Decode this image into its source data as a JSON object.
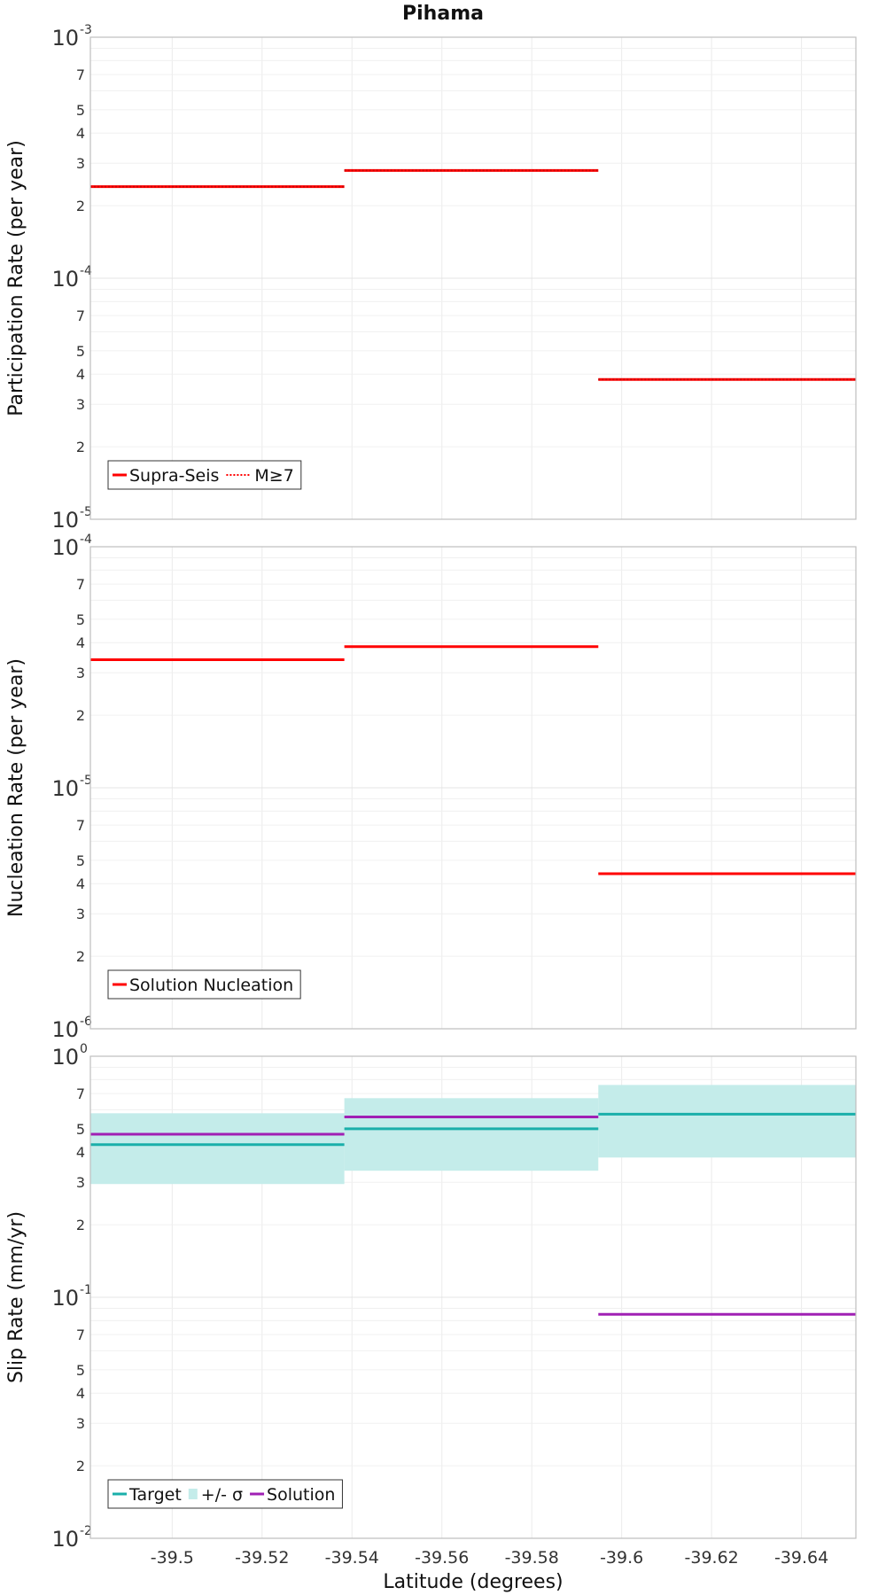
{
  "chart_data": {
    "title": "Pihama",
    "xlabel": "Latitude (degrees)",
    "xlim": [
      -39.4818,
      -39.6521
    ],
    "xticks": [
      -39.5,
      -39.52,
      -39.54,
      -39.56,
      -39.58,
      -39.6,
      -39.62,
      -39.64
    ],
    "xtick_labels": [
      "-39.5",
      "-39.52",
      "-39.54",
      "-39.56",
      "-39.58",
      "-39.6",
      "-39.62",
      "-39.64"
    ],
    "subplots": [
      {
        "type": "line",
        "ylabel": "Participation Rate (per year)",
        "yscale": "log",
        "ylim": [
          1e-05,
          0.001
        ],
        "decade_labels": [
          {
            "base": "10",
            "exp": "-5"
          },
          {
            "base": "10",
            "exp": "-4"
          },
          {
            "base": "10",
            "exp": "-3"
          }
        ],
        "minor_tick_labels": [
          "2",
          "3",
          "4",
          "5",
          "7"
        ],
        "legend": [
          "Supra-Seis",
          "M≥7"
        ],
        "series": [
          {
            "name": "Supra-Seis",
            "color": "#ff0000",
            "style": "solid",
            "segments": [
              {
                "x0": -39.4818,
                "x1": -39.5383,
                "y": 0.00024
              },
              {
                "x0": -39.5383,
                "x1": -39.5948,
                "y": 0.00028
              },
              {
                "x0": -39.5948,
                "x1": -39.6521,
                "y": 3.8e-05
              }
            ]
          },
          {
            "name": "M≥7",
            "color": "#ff0000",
            "style": "dotted",
            "segments": [
              {
                "x0": -39.4818,
                "x1": -39.5383,
                "y": 0.00024
              },
              {
                "x0": -39.5383,
                "x1": -39.5948,
                "y": 0.00028
              },
              {
                "x0": -39.5948,
                "x1": -39.6521,
                "y": 3.8e-05
              }
            ]
          }
        ]
      },
      {
        "type": "line",
        "ylabel": "Nucleation Rate (per year)",
        "yscale": "log",
        "ylim": [
          1e-06,
          0.0001
        ],
        "decade_labels": [
          {
            "base": "10",
            "exp": "-6"
          },
          {
            "base": "10",
            "exp": "-5"
          },
          {
            "base": "10",
            "exp": "-4"
          }
        ],
        "minor_tick_labels": [
          "2",
          "3",
          "4",
          "5",
          "7"
        ],
        "legend": [
          "Solution Nucleation"
        ],
        "series": [
          {
            "name": "Solution Nucleation",
            "color": "#ff0000",
            "style": "solid",
            "segments": [
              {
                "x0": -39.4818,
                "x1": -39.5383,
                "y": 3.4e-05
              },
              {
                "x0": -39.5383,
                "x1": -39.5948,
                "y": 3.85e-05
              },
              {
                "x0": -39.5948,
                "x1": -39.6521,
                "y": 4.4e-06
              }
            ]
          }
        ]
      },
      {
        "type": "line",
        "ylabel": "Slip Rate (mm/yr)",
        "yscale": "log",
        "ylim": [
          0.01,
          1
        ],
        "decade_labels": [
          {
            "base": "10",
            "exp": "-2"
          },
          {
            "base": "10",
            "exp": "-1"
          },
          {
            "base": "10",
            "exp": "0"
          }
        ],
        "minor_tick_labels": [
          "2",
          "3",
          "4",
          "5",
          "7"
        ],
        "legend": [
          "Target",
          "+/- σ",
          "Solution"
        ],
        "bands": [
          {
            "name": "+/- σ",
            "color": "#c4ecea",
            "segments": [
              {
                "x0": -39.4818,
                "x1": -39.5383,
                "low": 0.295,
                "high": 0.58
              },
              {
                "x0": -39.5383,
                "x1": -39.5948,
                "low": 0.335,
                "high": 0.67
              },
              {
                "x0": -39.5948,
                "x1": -39.6521,
                "low": 0.38,
                "high": 0.76
              }
            ]
          }
        ],
        "series": [
          {
            "name": "Target",
            "color": "#1aafaa",
            "style": "solid",
            "segments": [
              {
                "x0": -39.4818,
                "x1": -39.5383,
                "y": 0.43
              },
              {
                "x0": -39.5383,
                "x1": -39.5948,
                "y": 0.5
              },
              {
                "x0": -39.5948,
                "x1": -39.6521,
                "y": 0.575
              }
            ]
          },
          {
            "name": "Solution",
            "color": "#a020b4",
            "style": "solid",
            "segments": [
              {
                "x0": -39.4818,
                "x1": -39.5383,
                "y": 0.475
              },
              {
                "x0": -39.5383,
                "x1": -39.5948,
                "y": 0.56
              },
              {
                "x0": -39.5948,
                "x1": -39.6521,
                "y": 0.085
              }
            ]
          }
        ]
      }
    ]
  }
}
